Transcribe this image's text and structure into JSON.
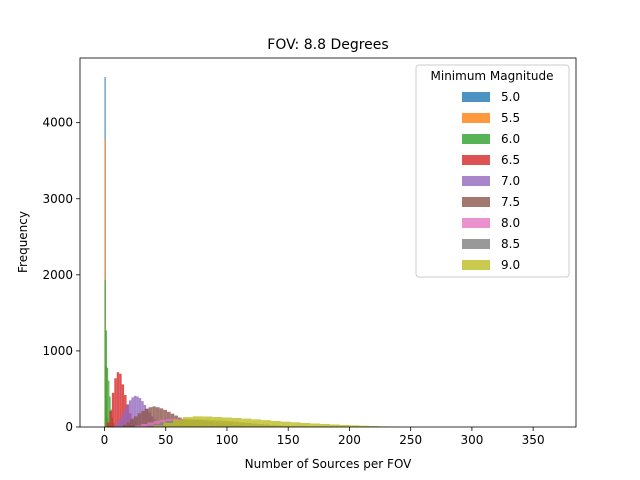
{
  "chart_data": {
    "type": "bar",
    "title": "FOV: 8.8 Degrees",
    "xlabel": "Number of Sources per FOV",
    "ylabel": "Frequency",
    "xlim": [
      -20,
      385
    ],
    "ylim": [
      0,
      4850
    ],
    "xticks": [
      0,
      50,
      100,
      150,
      200,
      250,
      300,
      350
    ],
    "yticks": [
      0,
      1000,
      2000,
      3000,
      4000
    ],
    "legend": {
      "title": "Minimum Magnitude",
      "placement": "upper right"
    },
    "series": [
      {
        "name": "5.0",
        "color": "#1f77b4",
        "bin_edges": [
          0,
          1,
          2
        ],
        "counts": [
          4600,
          350
        ]
      },
      {
        "name": "5.5",
        "color": "#ff7f0e",
        "bin_edges": [
          0,
          1,
          2,
          3
        ],
        "counts": [
          3780,
          800,
          120
        ]
      },
      {
        "name": "6.0",
        "color": "#2ca02c",
        "bin_edges": [
          0,
          1,
          2,
          3,
          4,
          5,
          6,
          7,
          8
        ],
        "counts": [
          1930,
          1270,
          780,
          610,
          400,
          230,
          120,
          50
        ]
      },
      {
        "name": "6.5",
        "color": "#d62728",
        "bin_edges": [
          2,
          4,
          6,
          8,
          10,
          12,
          14,
          16,
          18,
          20,
          22,
          24,
          26,
          28,
          30
        ],
        "counts": [
          60,
          210,
          450,
          640,
          720,
          700,
          560,
          420,
          290,
          180,
          110,
          60,
          30,
          10
        ]
      },
      {
        "name": "7.0",
        "color": "#9467bd",
        "bin_edges": [
          8,
          10,
          12,
          14,
          16,
          18,
          20,
          22,
          24,
          26,
          28,
          30,
          32,
          34,
          36,
          38,
          40,
          42,
          44,
          46,
          48,
          50
        ],
        "counts": [
          20,
          60,
          110,
          170,
          240,
          300,
          350,
          390,
          410,
          400,
          380,
          340,
          290,
          240,
          190,
          140,
          100,
          70,
          45,
          25,
          10
        ]
      },
      {
        "name": "7.5",
        "color": "#8c564b",
        "bin_edges": [
          15,
          18,
          21,
          24,
          27,
          30,
          33,
          36,
          39,
          42,
          45,
          48,
          51,
          54,
          57,
          60,
          63,
          66,
          69,
          72,
          75,
          78,
          81,
          84,
          87,
          90
        ],
        "counts": [
          30,
          60,
          100,
          140,
          180,
          210,
          240,
          260,
          270,
          260,
          245,
          225,
          200,
          175,
          150,
          125,
          100,
          80,
          60,
          45,
          30,
          20,
          12,
          6,
          3
        ]
      },
      {
        "name": "8.0",
        "color": "#e377c2",
        "bin_edges": [
          25,
          30,
          35,
          40,
          45,
          50,
          55,
          60,
          65,
          70,
          75,
          80,
          85,
          90,
          95,
          100,
          105,
          110,
          115,
          120,
          125,
          130
        ],
        "counts": [
          20,
          40,
          60,
          80,
          95,
          105,
          110,
          108,
          102,
          95,
          85,
          75,
          64,
          52,
          42,
          32,
          24,
          17,
          11,
          7,
          4
        ]
      },
      {
        "name": "8.5",
        "color": "#7f7f7f",
        "bin_edges": [
          35,
          40,
          45,
          50,
          55,
          60,
          65,
          70,
          75,
          80,
          85,
          90,
          95,
          100,
          105,
          110,
          115,
          120,
          125,
          130,
          135,
          140,
          145,
          150,
          155,
          160,
          165,
          170
        ],
        "counts": [
          20,
          40,
          60,
          80,
          90,
          98,
          100,
          100,
          98,
          94,
          90,
          85,
          80,
          74,
          68,
          60,
          52,
          45,
          38,
          31,
          25,
          20,
          15,
          11,
          8,
          5,
          3
        ]
      },
      {
        "name": "9.0",
        "color": "#bcbd22",
        "bin_edges": [
          40,
          48,
          56,
          64,
          72,
          80,
          88,
          96,
          104,
          112,
          120,
          128,
          136,
          144,
          152,
          160,
          168,
          176,
          184,
          192,
          200,
          208,
          216,
          224,
          232,
          240
        ],
        "counts": [
          20,
          55,
          95,
          130,
          140,
          138,
          132,
          125,
          118,
          110,
          100,
          90,
          80,
          70,
          62,
          54,
          46,
          40,
          33,
          27,
          22,
          17,
          12,
          8,
          4
        ]
      }
    ]
  }
}
